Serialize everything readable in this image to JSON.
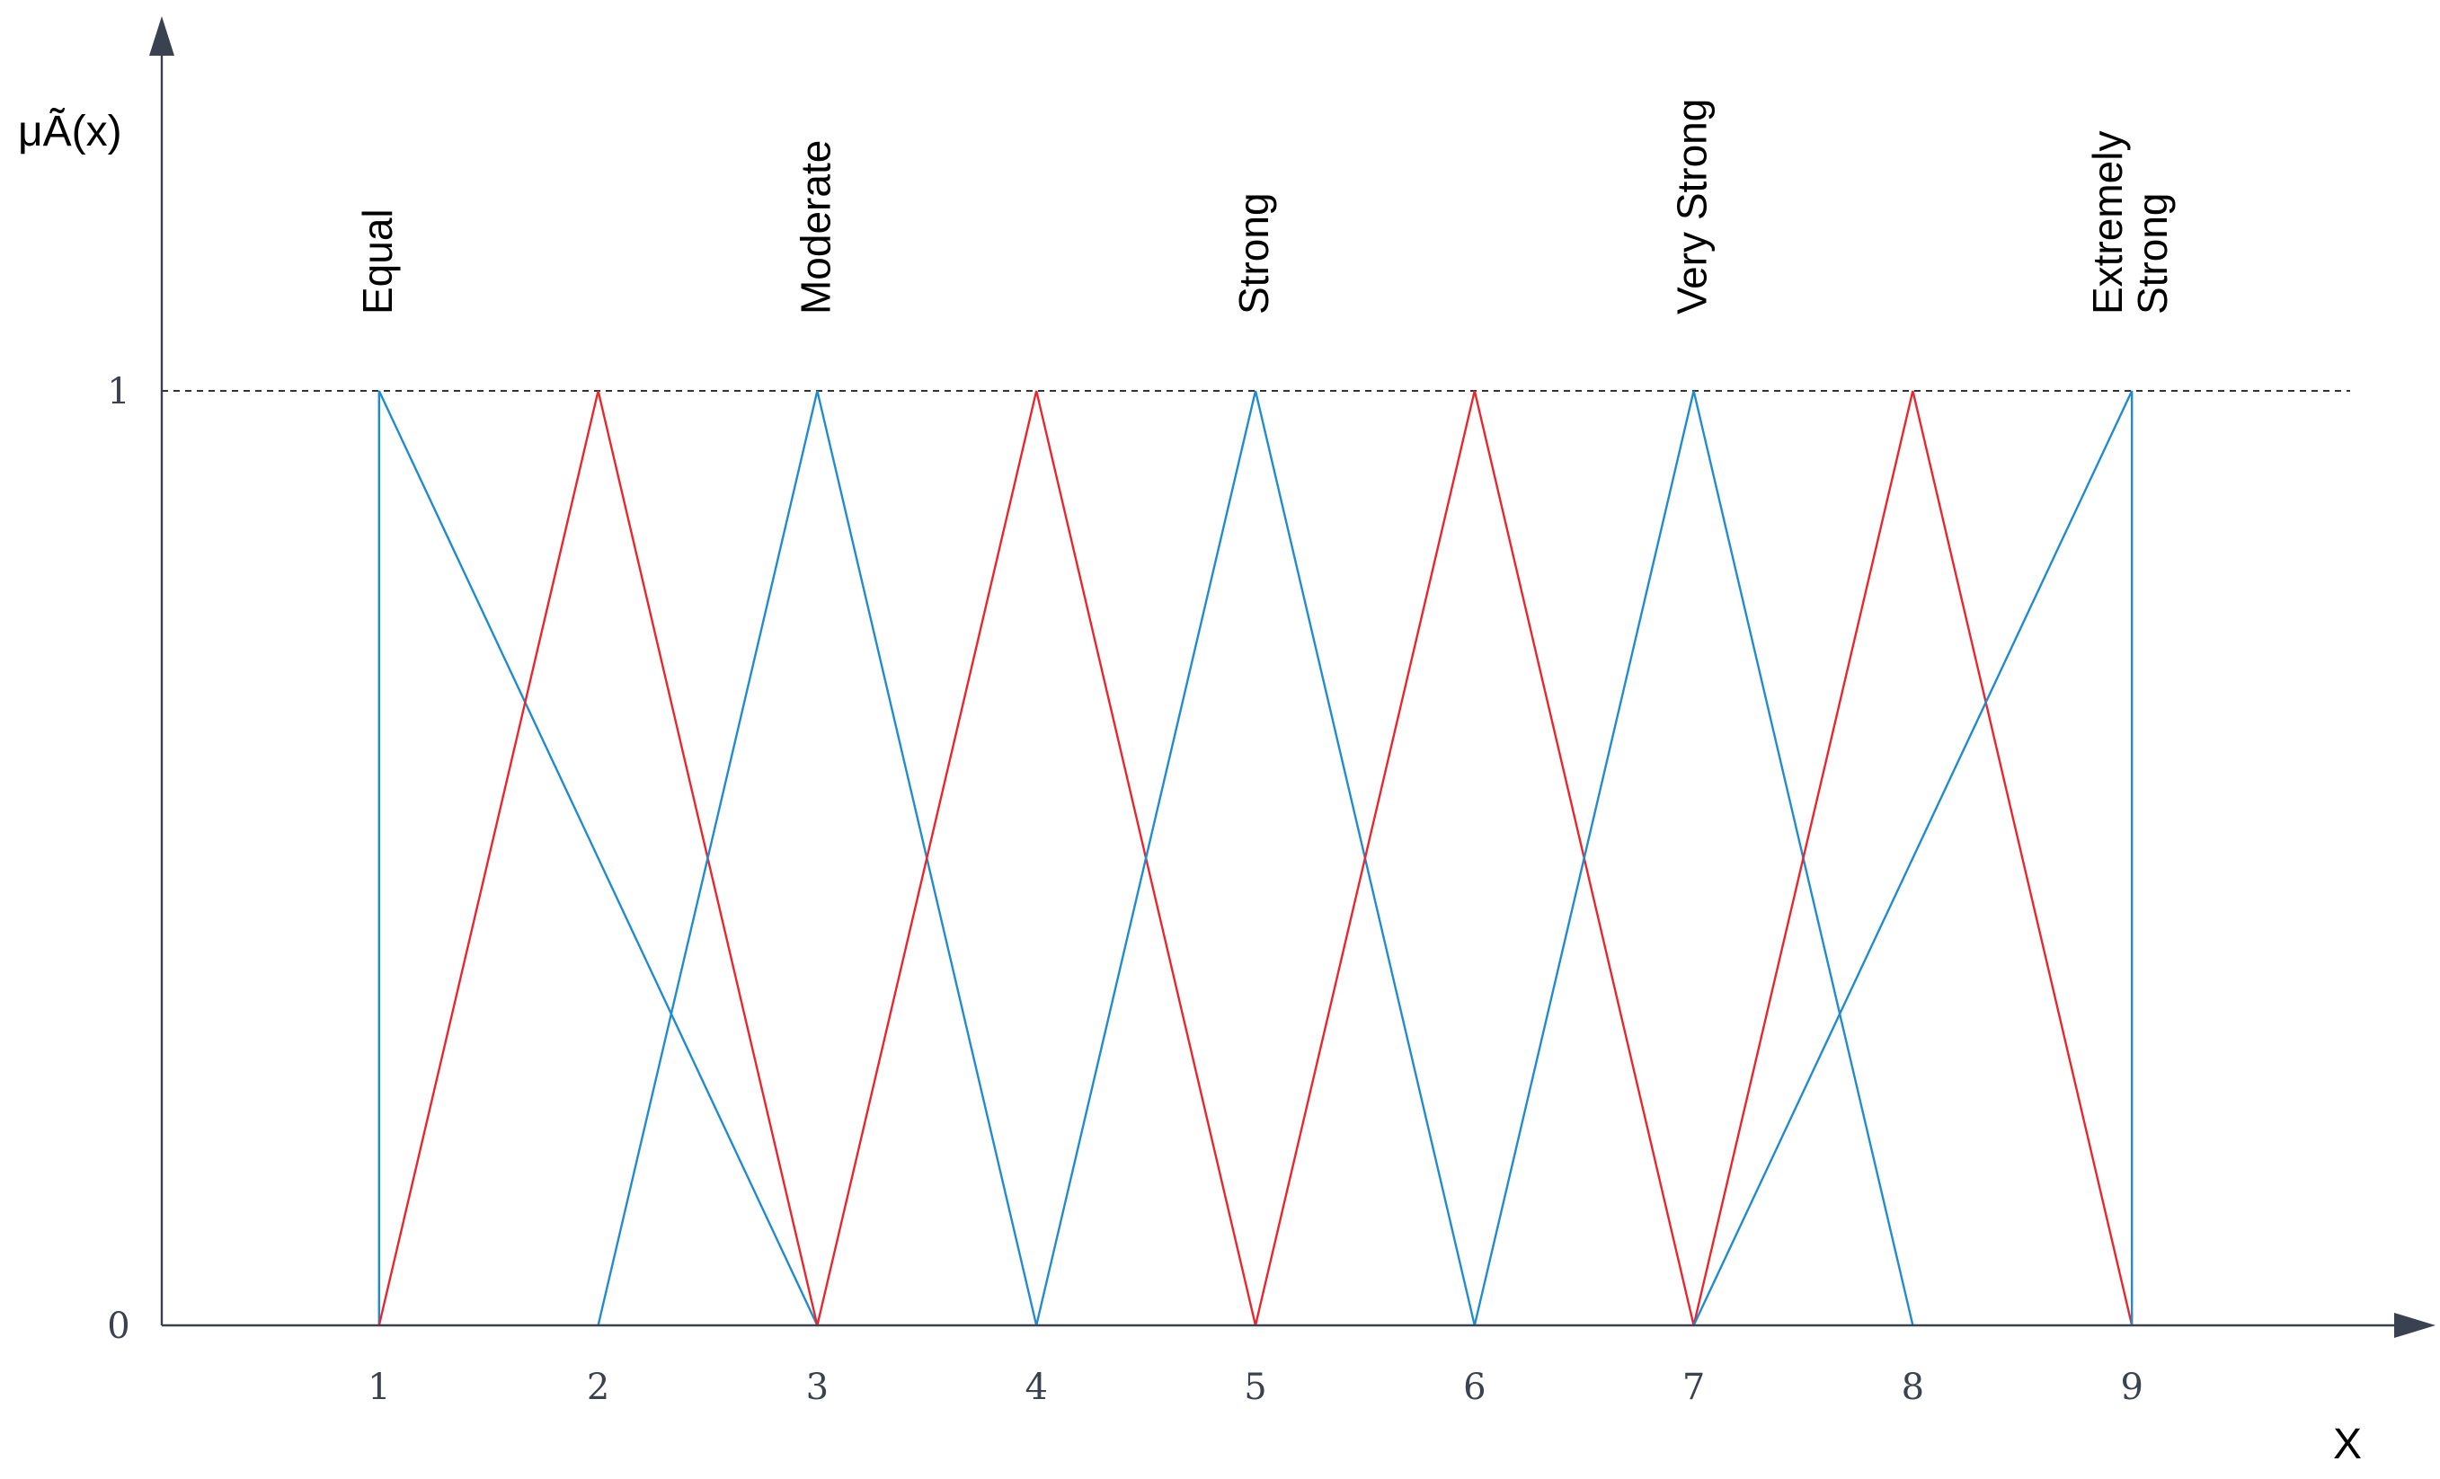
{
  "chart_data": {
    "type": "line",
    "ylabel": "μÃ(x)",
    "xlabel": "X",
    "x_ticks": [
      "1",
      "2",
      "3",
      "4",
      "5",
      "6",
      "7",
      "8",
      "9"
    ],
    "y_ticks": [
      "0",
      "1"
    ],
    "xlim": [
      0,
      10
    ],
    "ylim": [
      0,
      1
    ],
    "reference_line": {
      "y": 1,
      "style": "dashed"
    },
    "category_labels": [
      {
        "lines": [
          "Equal"
        ],
        "x": 1
      },
      {
        "lines": [
          "Moderate"
        ],
        "x": 3
      },
      {
        "lines": [
          "Strong"
        ],
        "x": 5
      },
      {
        "lines": [
          "Very Strong"
        ],
        "x": 7
      },
      {
        "lines": [
          "Extremely",
          "Strong"
        ],
        "x": 9
      }
    ],
    "colors": {
      "odd": "#1f8bd0",
      "even": "#e8262b",
      "axis": "#3a4150"
    },
    "series": [
      {
        "color_key": "odd",
        "points": [
          [
            1,
            0
          ],
          [
            1,
            1
          ],
          [
            3,
            0
          ]
        ]
      },
      {
        "color_key": "even",
        "points": [
          [
            1,
            0
          ],
          [
            2,
            1
          ],
          [
            3,
            0
          ]
        ]
      },
      {
        "color_key": "odd",
        "points": [
          [
            2,
            0
          ],
          [
            3,
            1
          ],
          [
            4,
            0
          ]
        ]
      },
      {
        "color_key": "even",
        "points": [
          [
            3,
            0
          ],
          [
            4,
            1
          ],
          [
            5,
            0
          ]
        ]
      },
      {
        "color_key": "odd",
        "points": [
          [
            4,
            0
          ],
          [
            5,
            1
          ],
          [
            6,
            0
          ]
        ]
      },
      {
        "color_key": "even",
        "points": [
          [
            5,
            0
          ],
          [
            6,
            1
          ],
          [
            7,
            0
          ]
        ]
      },
      {
        "color_key": "odd",
        "points": [
          [
            6,
            0
          ],
          [
            7,
            1
          ],
          [
            8,
            0
          ]
        ]
      },
      {
        "color_key": "even",
        "points": [
          [
            7,
            0
          ],
          [
            8,
            1
          ],
          [
            9,
            0
          ]
        ]
      },
      {
        "color_key": "odd",
        "points": [
          [
            7,
            0
          ],
          [
            9,
            1
          ],
          [
            9,
            0
          ]
        ]
      }
    ]
  }
}
